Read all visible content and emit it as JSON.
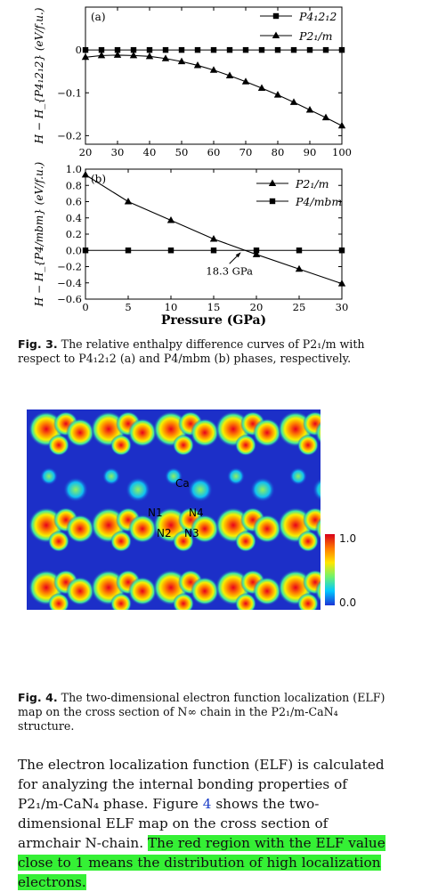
{
  "chart_data": [
    {
      "type": "line",
      "panel_label": "(a)",
      "ylabel": "H − H_{P4₁2₁2} (eV/f.u.)",
      "xlim": [
        20,
        100
      ],
      "ylim": [
        -0.22,
        0.1
      ],
      "x_ticks": [
        "20",
        "30",
        "40",
        "50",
        "60",
        "70",
        "80",
        "90",
        "100"
      ],
      "y_ticks": [
        "0",
        "−0.1",
        "−0.2"
      ],
      "x_tick_values": [
        20,
        30,
        40,
        50,
        60,
        70,
        80,
        90,
        100
      ],
      "y_tick_values": [
        0,
        -0.1,
        -0.2
      ],
      "series": [
        {
          "name": "P4₁2₁2",
          "marker": "square",
          "x": [
            20,
            25,
            30,
            35,
            40,
            45,
            50,
            55,
            60,
            65,
            70,
            75,
            80,
            85,
            90,
            95,
            100
          ],
          "y": [
            0,
            0,
            0,
            0,
            0,
            0,
            0,
            0,
            0,
            0,
            0,
            0,
            0,
            0,
            0,
            0,
            0
          ]
        },
        {
          "name": "P2₁/m",
          "marker": "triangle",
          "x": [
            20,
            25,
            30,
            35,
            40,
            45,
            50,
            55,
            60,
            65,
            70,
            75,
            80,
            85,
            90,
            95,
            100
          ],
          "y": [
            -0.017,
            -0.013,
            -0.012,
            -0.013,
            -0.015,
            -0.02,
            -0.027,
            -0.036,
            -0.047,
            -0.06,
            -0.074,
            -0.089,
            -0.105,
            -0.122,
            -0.14,
            -0.158,
            -0.177
          ]
        }
      ]
    },
    {
      "type": "line",
      "panel_label": "(b)",
      "xlabel": "Pressure (GPa)",
      "ylabel": "H − H_{P4/mbm} (eV/f.u.)",
      "xlim": [
        0,
        30
      ],
      "ylim": [
        -0.6,
        1.0
      ],
      "x_ticks": [
        "0",
        "5",
        "10",
        "15",
        "20",
        "25",
        "30"
      ],
      "y_ticks": [
        "1.0",
        "0.8",
        "0.6",
        "0.4",
        "0.2",
        "0.0",
        "−0.2",
        "−0.4",
        "−0.6"
      ],
      "x_tick_values": [
        0,
        5,
        10,
        15,
        20,
        25,
        30
      ],
      "y_tick_values": [
        1.0,
        0.8,
        0.6,
        0.4,
        0.2,
        0.0,
        -0.2,
        -0.4,
        -0.6
      ],
      "annotation": {
        "text": "18.3 GPa",
        "x": 18.3,
        "y": 0.0
      },
      "series": [
        {
          "name": "P2₁/m",
          "marker": "triangle",
          "x": [
            0,
            5,
            10,
            15,
            20,
            25,
            30
          ],
          "y": [
            0.93,
            0.6,
            0.37,
            0.14,
            -0.05,
            -0.23,
            -0.41
          ]
        },
        {
          "name": "P4/mbm",
          "marker": "square",
          "x": [
            0,
            5,
            10,
            15,
            20,
            25,
            30
          ],
          "y": [
            0,
            0,
            0,
            0,
            0,
            0,
            0
          ]
        }
      ]
    }
  ],
  "fig3_caption": {
    "label": "Fig. 3.",
    "text": "The relative enthalpy difference curves of P2₁/m with respect to P4₁2₁2 (a) and P4/mbm (b) phases, respectively."
  },
  "fig4": {
    "atom_labels": [
      "Ca",
      "N1",
      "N4",
      "N2",
      "N3"
    ],
    "colorbar": {
      "max": "1.0",
      "min": "0.0"
    },
    "caption_label": "Fig. 4.",
    "caption_text": "The two-dimensional electron function localization (ELF) map on the cross section of N∞ chain in the P2₁/m-CaN₄ structure."
  },
  "body": {
    "p1": "The electron localization function (ELF) is calculated for analyzing the internal bonding properties of P2₁/m-CaN₄ phase. Figure ",
    "fig_ref": "4",
    "p2": " shows the two-dimensional ELF map on the cross section of armchair ",
    "p3": "N-chain. ",
    "highlight": "The red region with the ELF value close to 1 means the distribution of high localization electrons."
  },
  "colors": {
    "highlight": "#35f035",
    "elf_background": "#1c2fc8"
  }
}
